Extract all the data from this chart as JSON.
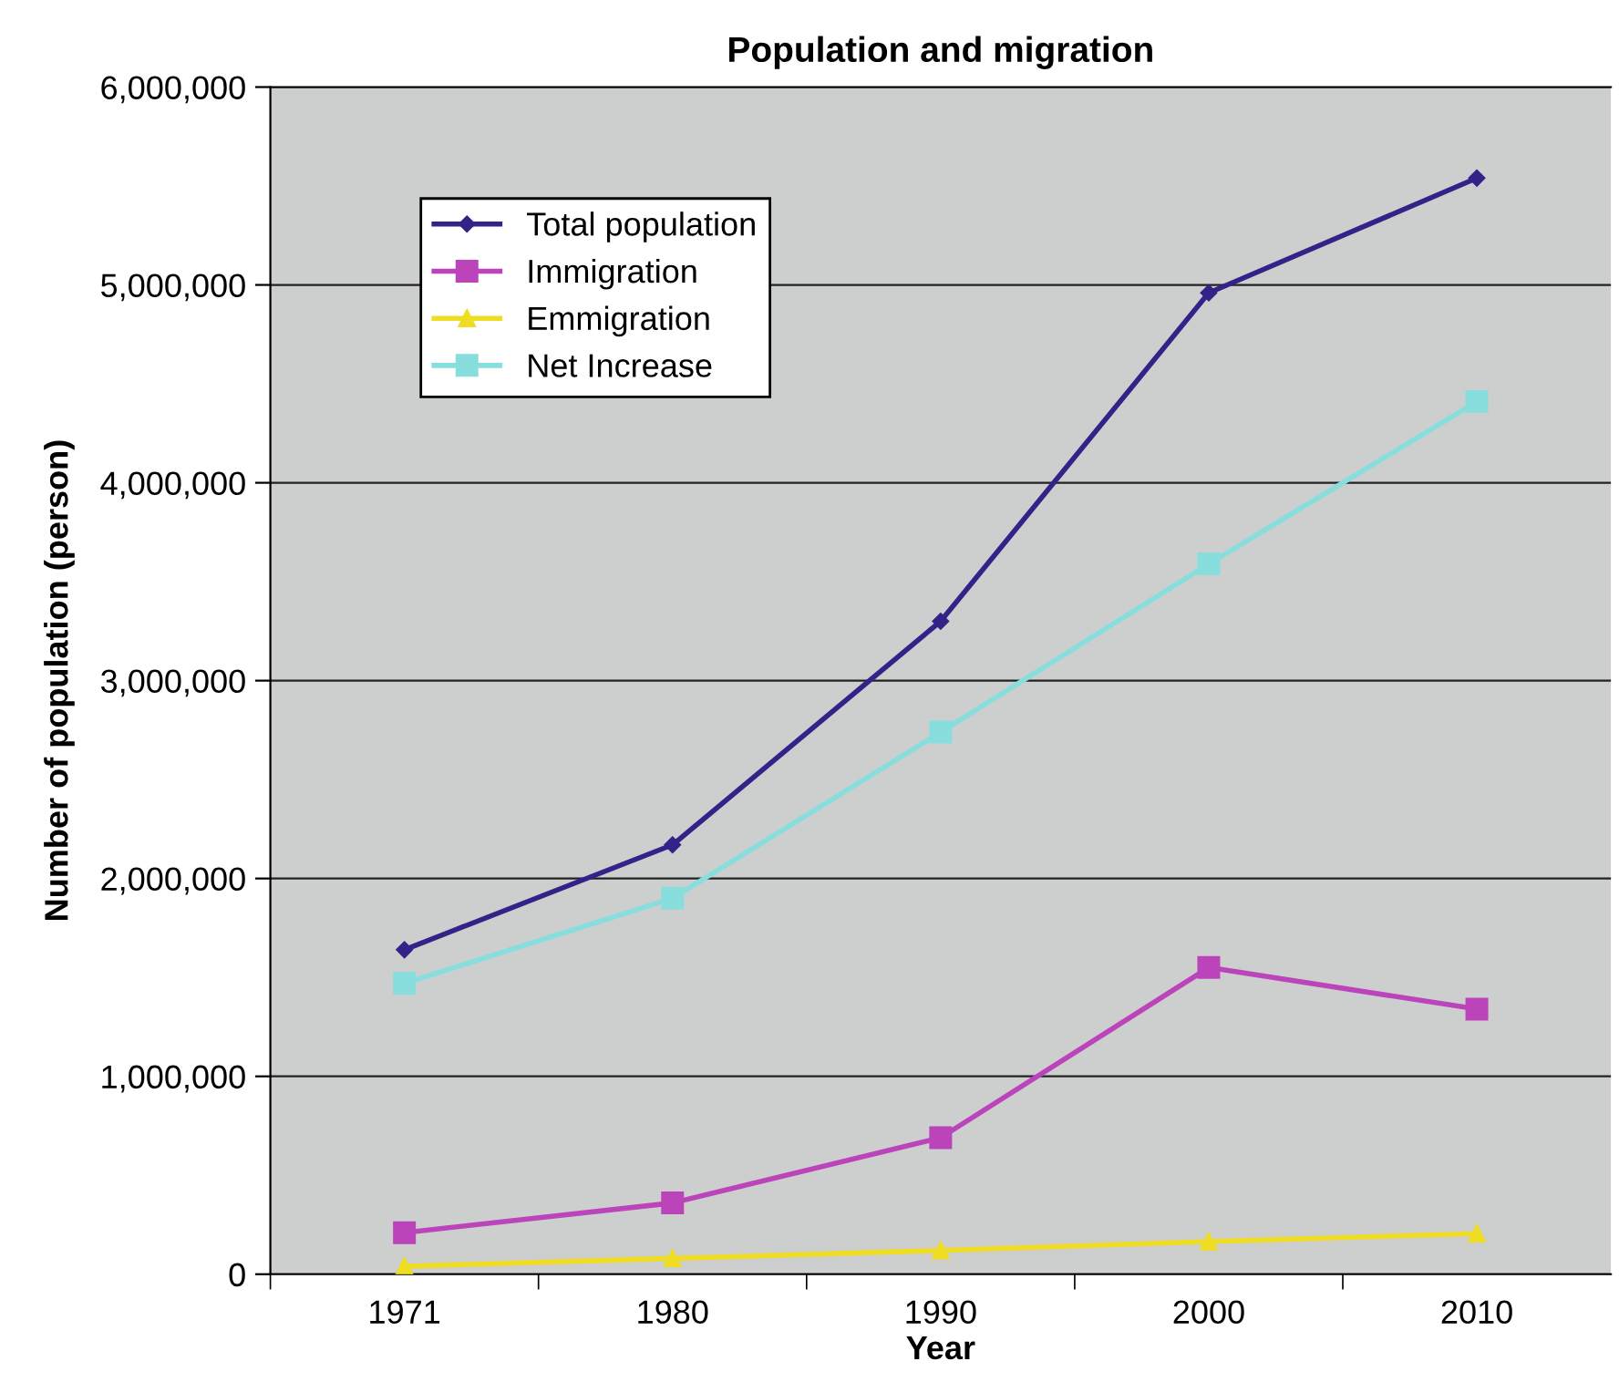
{
  "chart_data": {
    "type": "line",
    "title": "Population and migration",
    "xlabel": "Year",
    "ylabel": "Number of population (person)",
    "categories": [
      "1971",
      "1980",
      "1990",
      "2000",
      "2010"
    ],
    "series": [
      {
        "name": "Total population",
        "color": "#332288",
        "marker": "diamond",
        "values": [
          1640000,
          2170000,
          3300000,
          4960000,
          5540000
        ]
      },
      {
        "name": "Immigration",
        "color": "#bb44bb",
        "marker": "square",
        "values": [
          210000,
          360000,
          690000,
          1550000,
          1340000
        ]
      },
      {
        "name": "Emmigration",
        "color": "#eedd22",
        "marker": "triangle",
        "values": [
          40000,
          80000,
          120000,
          165000,
          205000
        ]
      },
      {
        "name": "Net Increase",
        "color": "#88dddd",
        "marker": "square",
        "values": [
          1470000,
          1900000,
          2740000,
          3590000,
          4410000
        ]
      }
    ],
    "ylim": [
      0,
      6000000
    ],
    "yticks": [
      {
        "value": 0,
        "label": "0"
      },
      {
        "value": 1000000,
        "label": "1,000,000"
      },
      {
        "value": 2000000,
        "label": "2,000,000"
      },
      {
        "value": 3000000,
        "label": "3,000,000"
      },
      {
        "value": 4000000,
        "label": "4,000,000"
      },
      {
        "value": 5000000,
        "label": "5,000,000"
      },
      {
        "value": 6000000,
        "label": "6,000,000"
      }
    ],
    "grid": "y",
    "legend": "top left",
    "line_style": "solid"
  }
}
